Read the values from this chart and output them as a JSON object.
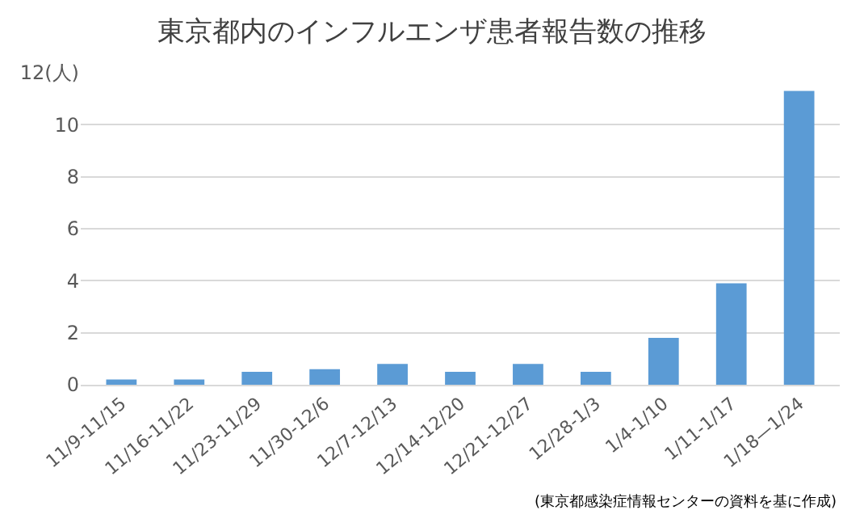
{
  "chart_data": {
    "type": "bar",
    "title": "東京都内のインフルエンザ患者報告数の推移",
    "categories": [
      "11/9-11/15",
      "11/16-11/22",
      "11/23-11/29",
      "11/30-12/6",
      "12/7-12/13",
      "12/14-12/20",
      "12/21-12/27",
      "12/28-1/3",
      "1/4-1/10",
      "1/11-1/17",
      "1/18—1/24"
    ],
    "values": [
      0.2,
      0.2,
      0.5,
      0.6,
      0.8,
      0.5,
      0.8,
      0.5,
      1.8,
      3.9,
      11.3
    ],
    "color": "#5b9bd5",
    "ylim": [
      0,
      12
    ],
    "yticks": [
      0,
      2,
      4,
      6,
      8,
      10,
      {
        "value": 12,
        "label": "12(人)"
      }
    ],
    "grid": "y",
    "annotations": [
      "(東京都感染症情報センターの資料を基に作成)"
    ]
  }
}
